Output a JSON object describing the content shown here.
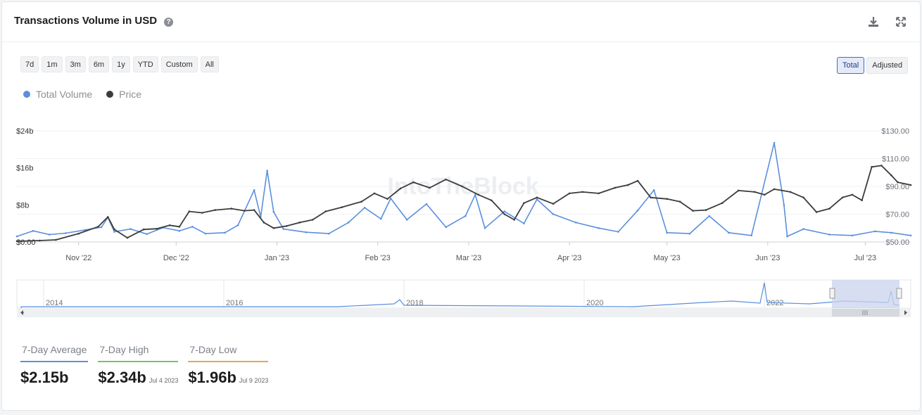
{
  "header": {
    "title": "Transactions Volume in USD",
    "help_icon": "?"
  },
  "icons": {
    "download": "download-icon",
    "expand": "expand-icon"
  },
  "range_buttons": [
    "7d",
    "1m",
    "3m",
    "6m",
    "1y",
    "YTD",
    "Custom",
    "All"
  ],
  "mode_buttons": [
    {
      "label": "Total",
      "active": true
    },
    {
      "label": "Adjusted",
      "active": false
    }
  ],
  "legend": [
    {
      "label": "Total Volume",
      "color": "#5b8fde"
    },
    {
      "label": "Price",
      "color": "#3c3c3c"
    }
  ],
  "watermark": "IntoTheBlock",
  "chart_data": {
    "type": "line",
    "x_labels": [
      "Nov '22",
      "Dec '22",
      "Jan '23",
      "Feb '23",
      "Mar '23",
      "Apr '23",
      "May '23",
      "Jun '23",
      "Jul '23"
    ],
    "y_left_labels": [
      "$0.00",
      "$8b",
      "$16b",
      "$24b"
    ],
    "y_right_labels": [
      "$50.00",
      "$70.00",
      "$90.00",
      "$110.00",
      "$130.00"
    ],
    "ylim_left": [
      0,
      24
    ],
    "ylim_right": [
      50,
      130
    ],
    "grid": true,
    "series": [
      {
        "name": "Total Volume",
        "axis": "left",
        "color": "#5b8fde",
        "unit": "billion USD",
        "points": [
          [
            "2022-10-13",
            1.2
          ],
          [
            "2022-10-18",
            2.4
          ],
          [
            "2022-10-23",
            1.6
          ],
          [
            "2022-10-28",
            1.9
          ],
          [
            "2022-11-03",
            2.6
          ],
          [
            "2022-11-08",
            3.2
          ],
          [
            "2022-11-10",
            5.3
          ],
          [
            "2022-11-12",
            2.2
          ],
          [
            "2022-11-17",
            2.8
          ],
          [
            "2022-11-22",
            1.7
          ],
          [
            "2022-11-27",
            3.1
          ],
          [
            "2022-12-02",
            2.4
          ],
          [
            "2022-12-06",
            3.3
          ],
          [
            "2022-12-10",
            1.8
          ],
          [
            "2022-12-16",
            2.0
          ],
          [
            "2022-12-20",
            3.6
          ],
          [
            "2022-12-25",
            11.2
          ],
          [
            "2022-12-27",
            5.4
          ],
          [
            "2022-12-29",
            15.4
          ],
          [
            "2022-12-31",
            6.5
          ],
          [
            "2023-01-03",
            2.8
          ],
          [
            "2023-01-10",
            2.1
          ],
          [
            "2023-01-17",
            1.8
          ],
          [
            "2023-01-23",
            4.2
          ],
          [
            "2023-01-28",
            7.4
          ],
          [
            "2023-02-02",
            5.0
          ],
          [
            "2023-02-05",
            9.4
          ],
          [
            "2023-02-10",
            4.8
          ],
          [
            "2023-02-16",
            8.2
          ],
          [
            "2023-02-22",
            3.2
          ],
          [
            "2023-02-28",
            5.6
          ],
          [
            "2023-03-03",
            10.2
          ],
          [
            "2023-03-06",
            3.0
          ],
          [
            "2023-03-12",
            6.6
          ],
          [
            "2023-03-18",
            4.0
          ],
          [
            "2023-03-22",
            9.2
          ],
          [
            "2023-03-27",
            6.0
          ],
          [
            "2023-04-03",
            4.2
          ],
          [
            "2023-04-10",
            3.0
          ],
          [
            "2023-04-16",
            2.2
          ],
          [
            "2023-04-22",
            6.8
          ],
          [
            "2023-04-27",
            11.2
          ],
          [
            "2023-05-01",
            2.0
          ],
          [
            "2023-05-08",
            1.8
          ],
          [
            "2023-05-14",
            5.6
          ],
          [
            "2023-05-20",
            2.0
          ],
          [
            "2023-05-27",
            1.4
          ],
          [
            "2023-06-03",
            21.4
          ],
          [
            "2023-06-06",
            8.0
          ],
          [
            "2023-06-07",
            1.2
          ],
          [
            "2023-06-12",
            2.8
          ],
          [
            "2023-06-20",
            1.6
          ],
          [
            "2023-06-27",
            1.4
          ],
          [
            "2023-07-04",
            2.3
          ],
          [
            "2023-07-09",
            2.0
          ],
          [
            "2023-07-15",
            1.4
          ]
        ]
      },
      {
        "name": "Price",
        "axis": "right",
        "color": "#3c3c3c",
        "unit": "USD",
        "points": [
          [
            "2022-10-13",
            50.5
          ],
          [
            "2022-10-20",
            51.0
          ],
          [
            "2022-10-25",
            51.5
          ],
          [
            "2022-11-01",
            56.0
          ],
          [
            "2022-11-07",
            61.0
          ],
          [
            "2022-11-10",
            68.0
          ],
          [
            "2022-11-12",
            59.0
          ],
          [
            "2022-11-16",
            53.0
          ],
          [
            "2022-11-21",
            59.0
          ],
          [
            "2022-11-25",
            59.5
          ],
          [
            "2022-11-29",
            62.0
          ],
          [
            "2022-12-02",
            61.0
          ],
          [
            "2022-12-05",
            72.0
          ],
          [
            "2022-12-09",
            71.0
          ],
          [
            "2022-12-13",
            73.0
          ],
          [
            "2022-12-18",
            74.0
          ],
          [
            "2022-12-22",
            72.5
          ],
          [
            "2022-12-25",
            73.0
          ],
          [
            "2022-12-28",
            64.0
          ],
          [
            "2022-12-31",
            60.0
          ],
          [
            "2023-01-04",
            61.5
          ],
          [
            "2023-01-08",
            64.0
          ],
          [
            "2023-01-12",
            66.0
          ],
          [
            "2023-01-16",
            72.0
          ],
          [
            "2023-01-21",
            75.0
          ],
          [
            "2023-01-27",
            79.0
          ],
          [
            "2023-01-31",
            85.0
          ],
          [
            "2023-02-04",
            81.0
          ],
          [
            "2023-02-08",
            88.5
          ],
          [
            "2023-02-12",
            93.0
          ],
          [
            "2023-02-17",
            89.0
          ],
          [
            "2023-02-22",
            95.0
          ],
          [
            "2023-02-27",
            90.0
          ],
          [
            "2023-03-04",
            84.0
          ],
          [
            "2023-03-08",
            80.0
          ],
          [
            "2023-03-12",
            70.0
          ],
          [
            "2023-03-15",
            66.0
          ],
          [
            "2023-03-18",
            78.0
          ],
          [
            "2023-03-22",
            82.0
          ],
          [
            "2023-03-27",
            77.5
          ],
          [
            "2023-04-01",
            85.0
          ],
          [
            "2023-04-05",
            86.0
          ],
          [
            "2023-04-10",
            85.0
          ],
          [
            "2023-04-15",
            89.0
          ],
          [
            "2023-04-19",
            91.0
          ],
          [
            "2023-04-22",
            94.0
          ],
          [
            "2023-04-26",
            82.0
          ],
          [
            "2023-05-01",
            81.0
          ],
          [
            "2023-05-05",
            79.0
          ],
          [
            "2023-05-09",
            72.5
          ],
          [
            "2023-05-13",
            73.0
          ],
          [
            "2023-05-18",
            78.0
          ],
          [
            "2023-05-23",
            87.0
          ],
          [
            "2023-05-28",
            86.0
          ],
          [
            "2023-05-31",
            84.0
          ],
          [
            "2023-06-03",
            88.0
          ],
          [
            "2023-06-08",
            86.0
          ],
          [
            "2023-06-12",
            82.0
          ],
          [
            "2023-06-16",
            71.5
          ],
          [
            "2023-06-20",
            74.0
          ],
          [
            "2023-06-24",
            82.0
          ],
          [
            "2023-06-27",
            84.0
          ],
          [
            "2023-06-30",
            80.0
          ],
          [
            "2023-07-03",
            104.0
          ],
          [
            "2023-07-06",
            105.0
          ],
          [
            "2023-07-09",
            98.0
          ],
          [
            "2023-07-11",
            93.0
          ],
          [
            "2023-07-15",
            91.0
          ]
        ]
      }
    ],
    "navigator": {
      "x_labels": [
        "2014",
        "2016",
        "2018",
        "2020",
        "2022"
      ],
      "selection": [
        "2022-10-13",
        "2023-07-15"
      ]
    }
  },
  "stats": [
    {
      "label": "7-Day Average",
      "value": "$2.15b",
      "date": "",
      "color": "#5b8fde"
    },
    {
      "label": "7-Day High",
      "value": "$2.34b",
      "date": "Jul 4 2023",
      "color": "#7ac36a"
    },
    {
      "label": "7-Day Low",
      "value": "$1.96b",
      "date": "Jul 9 2023",
      "color": "#e8a84a"
    }
  ]
}
